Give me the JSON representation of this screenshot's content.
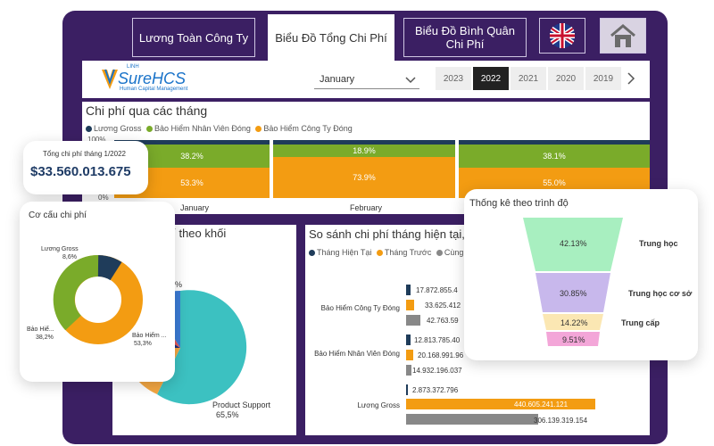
{
  "tabs": [
    {
      "label": "Lương Toàn Công Ty"
    },
    {
      "label": "Biểu Đồ Tổng Chi Phí"
    },
    {
      "label": "Biểu Đồ Bình Quân Chi Phí"
    }
  ],
  "brand": {
    "logo_text": "SureHCS",
    "logo_sub": "Human Capital Management",
    "logo_tag": "LINH"
  },
  "filter": {
    "month": "January"
  },
  "years": [
    "2023",
    "2022",
    "2021",
    "2020",
    "2019"
  ],
  "selected_year": "2022",
  "monthly": {
    "title": "Chi phí qua các tháng",
    "legend": [
      "Lương Gross",
      "Bảo Hiểm Nhân Viên Đóng",
      "Bảo Hiểm Công Ty Đóng"
    ],
    "colors": [
      "#1f3c5a",
      "#7aab2a",
      "#f39c12"
    ],
    "y_ticks": [
      "100%",
      "0%"
    ],
    "chart_data": {
      "type": "bar",
      "categories": [
        "January",
        "February"
      ],
      "series": [
        {
          "name": "Lương Gross",
          "values": [
            null,
            null
          ]
        },
        {
          "name": "Bảo Hiểm Nhân Viên Đóng",
          "values": [
            38.2,
            18.9
          ]
        },
        {
          "name": "Bảo Hiểm Công Ty Đóng",
          "values": [
            53.3,
            73.9
          ]
        }
      ],
      "partial_column": {
        "Bảo Hiểm Nhân Viên Đóng": "38.1%",
        "Bảo Hiểm Công Ty Đóng": "55.0%"
      }
    },
    "labels": {
      "jan_nv": "38.2%",
      "jan_ct": "53.3%",
      "feb_nv": "18.9%",
      "feb_ct": "73.9%",
      "mar_nv": "38.1%",
      "mar_ct": "55.0%"
    },
    "x_labels": {
      "jan": "January",
      "feb": "February"
    }
  },
  "total_card": {
    "label": "Tổng chi phí tháng 1/2022",
    "value": "$33.560.013.675"
  },
  "structure": {
    "title": "Cơ cấu chi phí",
    "chart_data": {
      "type": "pie",
      "categories": [
        "Lương Gross",
        "Bảo Hiểm Nhân Viên Đóng",
        "Bảo Hiểm Công Ty Đóng"
      ],
      "values": [
        8.6,
        38.2,
        53.3
      ]
    },
    "labels": {
      "gross": "Lương Gross",
      "gross_pct": "8,6%",
      "bh_nv": "Bảo Hiể...",
      "bh_nv_pct": "38,2%",
      "bh_ct": "Bảo Hiểm ...",
      "bh_ct_pct": "53,3%"
    }
  },
  "block": {
    "title_partial": "hí theo khối",
    "pct_partial": "%",
    "main_label": "Product Support",
    "main_pct": "65,5%",
    "chart_data": {
      "type": "pie",
      "categories": [
        "Product Support"
      ],
      "values": [
        65.5
      ]
    }
  },
  "compare": {
    "title": "So sánh chi phí tháng hiện tại, t",
    "legend": [
      "Tháng Hiện Tại",
      "Tháng Trước",
      "Cùng kỳ"
    ],
    "colors": [
      "#1f3c5a",
      "#f39c12",
      "#888888"
    ],
    "chart_data": {
      "type": "bar",
      "categories": [
        "Bảo Hiểm Công Ty Đóng",
        "Bảo Hiểm Nhân Viên Đóng",
        "Lương Gross"
      ],
      "series": [
        {
          "name": "Tháng Hiện Tại",
          "values": [
            17872855000,
            12813785000,
            2873372796
          ]
        },
        {
          "name": "Tháng Trước",
          "values": [
            33625412000,
            20168991000,
            440605241121
          ]
        },
        {
          "name": "Cùng kỳ",
          "values": [
            42763590000,
            14932196037,
            306139319154
          ]
        }
      ]
    },
    "value_labels": [
      [
        "17.872.855.4",
        "33.625.412",
        "42.763.59"
      ],
      [
        "12.813.785.40",
        "20.168.991.96",
        "14.932.196.037"
      ],
      [
        "2.873.372.796",
        "440.605.241.121",
        "306.139.319.154"
      ]
    ]
  },
  "education": {
    "title": "Thống kê theo trình độ",
    "chart_data": {
      "type": "bar",
      "categories": [
        "Trung học",
        "Trung học cơ sở",
        "Trung cấp",
        ""
      ],
      "values": [
        42.13,
        30.85,
        14.22,
        9.51
      ]
    },
    "pct_labels": [
      "42.13%",
      "30.85%",
      "14.22%",
      "9.51%"
    ],
    "cat_labels": [
      "Trung học",
      "Trung học cơ sở",
      "Trung cấp"
    ],
    "colors": [
      "#a8efc0",
      "#c8b8ec",
      "#fbe7b3",
      "#f3a6d8"
    ]
  }
}
